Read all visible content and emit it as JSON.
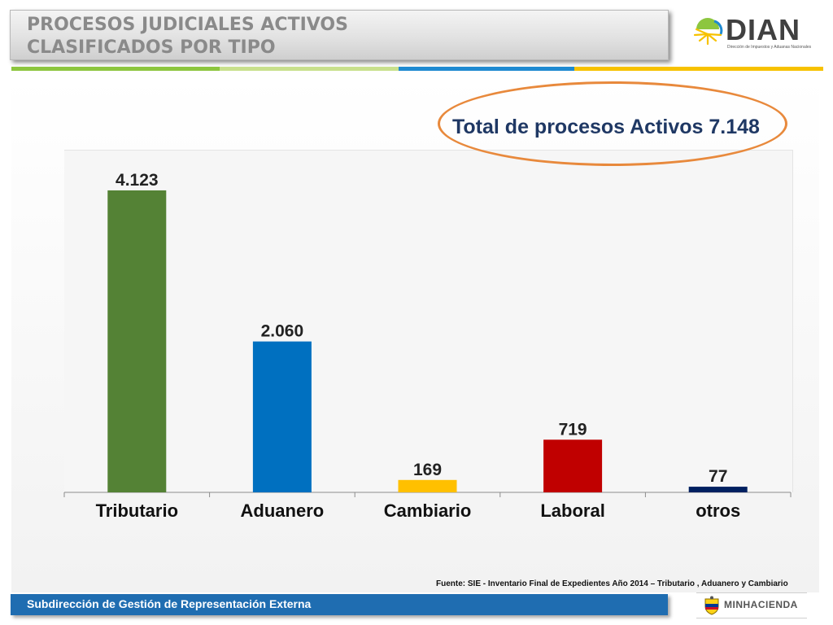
{
  "header": {
    "title_line1": "PROCESOS JUDICIALES ACTIVOS",
    "title_line2": "CLASIFICADOS POR TIPO"
  },
  "logo": {
    "name": "DIAN",
    "subtitle": "Dirección de Impuestos y Aduanas Nacionales",
    "icon": "sun-logo-icon"
  },
  "stripe_colors": [
    "#8dc63f",
    "#c8e08c",
    "#1f8ad1",
    "#f7c200"
  ],
  "chart_data": {
    "type": "bar",
    "categories": [
      "Tributario",
      "Aduanero",
      "Cambiario",
      "Laboral",
      "otros"
    ],
    "values": [
      4123,
      2060,
      169,
      719,
      77
    ],
    "value_labels": [
      "4.123",
      "2.060",
      "169",
      "719",
      "77"
    ],
    "colors": [
      "#548235",
      "#0070c0",
      "#ffc000",
      "#c00000",
      "#002060"
    ],
    "ylim": [
      0,
      4500
    ],
    "grid": false,
    "legend": "none"
  },
  "total": {
    "text": "Total de procesos Activos 7.148",
    "highlight_color": "#e8893c"
  },
  "source": "Fuente: SIE - Inventario Final de Expedientes Año 2014 – Tributario , Aduanero y Cambiario",
  "footer": {
    "text": "Subdirección de Gestión de Representación Externa",
    "color": "#1f6db1"
  },
  "ministry": {
    "name": "MINHACIENDA",
    "icon": "coat-of-arms-icon"
  }
}
